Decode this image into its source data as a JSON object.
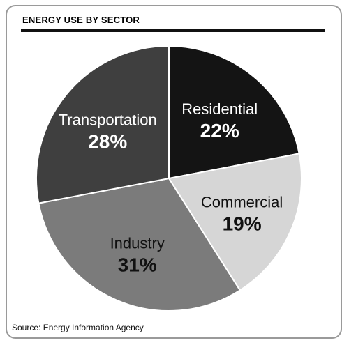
{
  "header": {
    "title": "ENERGY USE BY SECTOR"
  },
  "footer": {
    "source": "Source: Energy Information Agency"
  },
  "chart_data": {
    "type": "pie",
    "title": "ENERGY USE BY SECTOR",
    "slices": [
      {
        "label": "Residential",
        "value": 22,
        "display": "22%",
        "color": "#141414",
        "text_color": "#ffffff"
      },
      {
        "label": "Commercial",
        "value": 19,
        "display": "19%",
        "color": "#d6d6d6",
        "text_color": "#111111"
      },
      {
        "label": "Industry",
        "value": 31,
        "display": "31%",
        "color": "#7b7b7b",
        "text_color": "#111111"
      },
      {
        "label": "Transportation",
        "value": 28,
        "display": "28%",
        "color": "#3f3f3f",
        "text_color": "#ffffff"
      }
    ],
    "start_at": "12 o'clock",
    "direction": "clockwise",
    "slice_separator_color": "#ffffff"
  }
}
